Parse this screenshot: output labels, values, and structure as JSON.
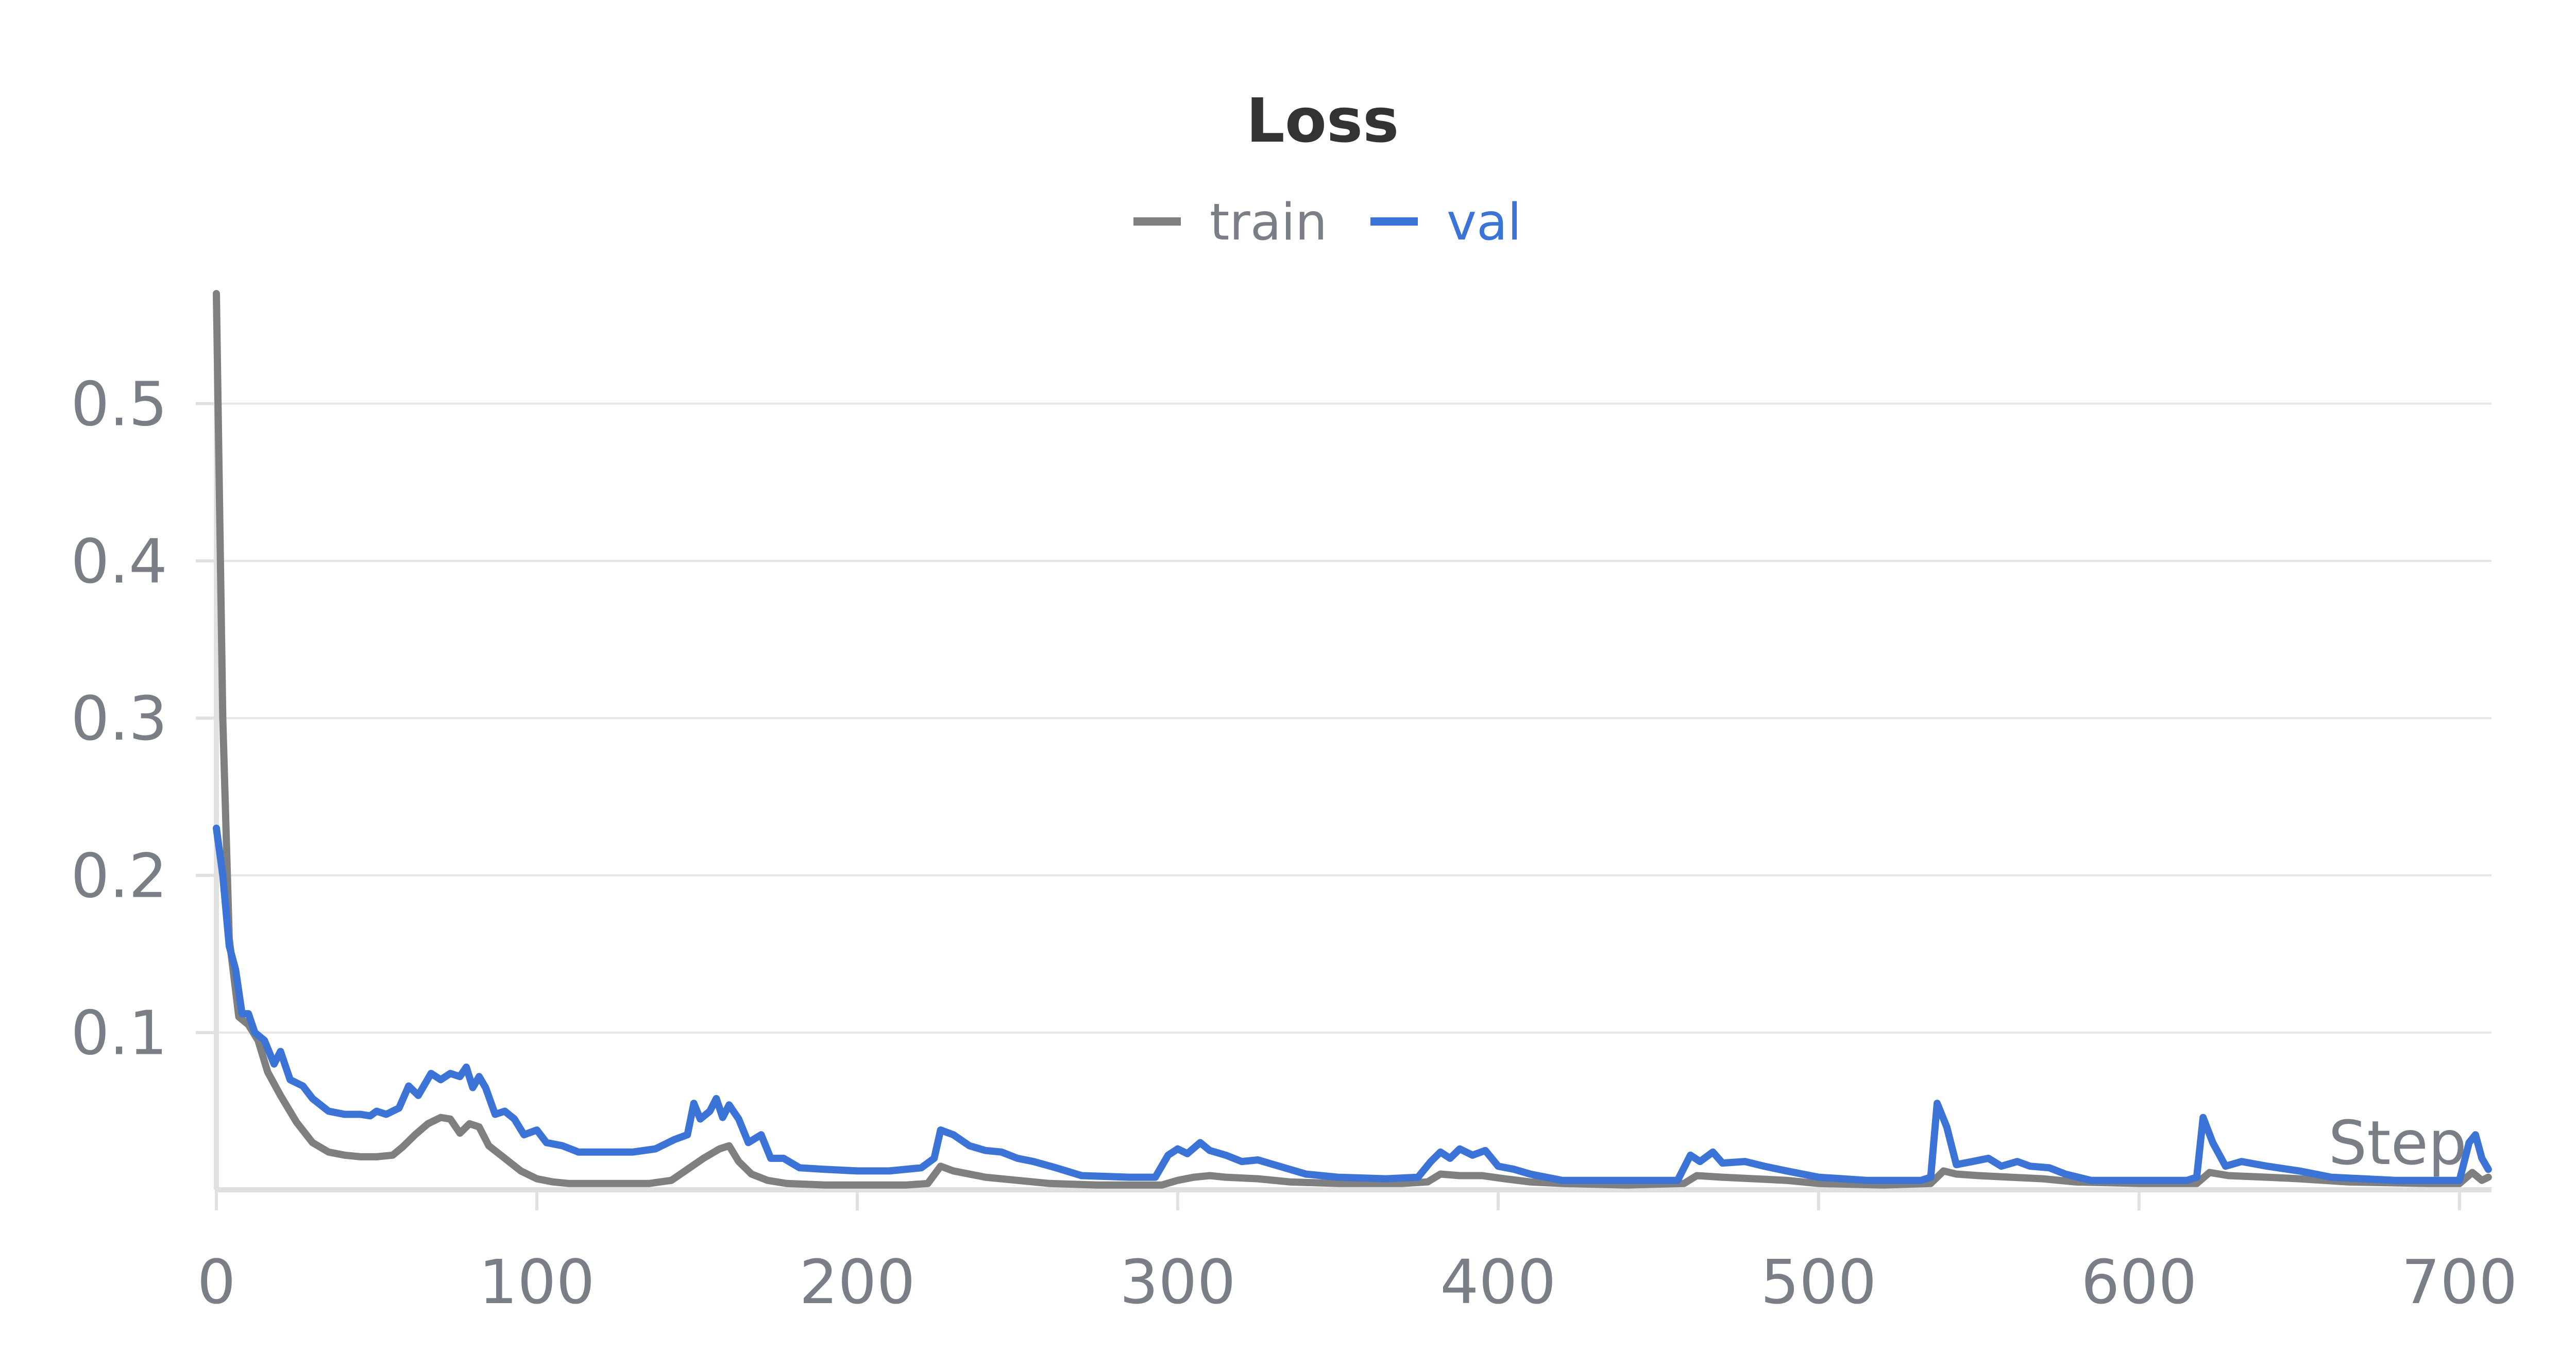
{
  "chart_data": {
    "type": "line",
    "title": "Loss",
    "xlabel": "Step",
    "ylabel": "",
    "xlim": [
      0,
      710
    ],
    "ylim": [
      0,
      0.57
    ],
    "xticks": [
      "0",
      "100",
      "200",
      "300",
      "400",
      "500",
      "600",
      "700"
    ],
    "yticks": [
      "0.1",
      "0.2",
      "0.3",
      "0.4",
      "0.5"
    ],
    "grid": true,
    "legend_position": "top-center",
    "colors": {
      "train": "#7f7f7f",
      "val": "#3b73d6",
      "grid": "#e6e6e6",
      "axis": "#e0e0e0",
      "text": "#7a7e86"
    },
    "series": [
      {
        "name": "train",
        "points": [
          [
            0,
            0.57
          ],
          [
            2,
            0.3
          ],
          [
            4,
            0.16
          ],
          [
            7,
            0.11
          ],
          [
            10,
            0.105
          ],
          [
            13,
            0.095
          ],
          [
            16,
            0.075
          ],
          [
            20,
            0.06
          ],
          [
            25,
            0.043
          ],
          [
            30,
            0.03
          ],
          [
            35,
            0.024
          ],
          [
            40,
            0.022
          ],
          [
            45,
            0.021
          ],
          [
            50,
            0.021
          ],
          [
            55,
            0.022
          ],
          [
            58,
            0.027
          ],
          [
            62,
            0.035
          ],
          [
            66,
            0.042
          ],
          [
            70,
            0.046
          ],
          [
            73,
            0.045
          ],
          [
            76,
            0.036
          ],
          [
            79,
            0.042
          ],
          [
            82,
            0.04
          ],
          [
            85,
            0.028
          ],
          [
            90,
            0.02
          ],
          [
            95,
            0.012
          ],
          [
            100,
            0.007
          ],
          [
            105,
            0.005
          ],
          [
            110,
            0.004
          ],
          [
            120,
            0.004
          ],
          [
            135,
            0.004
          ],
          [
            142,
            0.006
          ],
          [
            147,
            0.013
          ],
          [
            152,
            0.02
          ],
          [
            157,
            0.026
          ],
          [
            160,
            0.028
          ],
          [
            163,
            0.018
          ],
          [
            167,
            0.01
          ],
          [
            172,
            0.006
          ],
          [
            178,
            0.004
          ],
          [
            190,
            0.003
          ],
          [
            200,
            0.003
          ],
          [
            215,
            0.003
          ],
          [
            222,
            0.004
          ],
          [
            226,
            0.015
          ],
          [
            230,
            0.012
          ],
          [
            240,
            0.008
          ],
          [
            250,
            0.006
          ],
          [
            260,
            0.004
          ],
          [
            275,
            0.003
          ],
          [
            295,
            0.003
          ],
          [
            300,
            0.006
          ],
          [
            305,
            0.008
          ],
          [
            310,
            0.009
          ],
          [
            315,
            0.008
          ],
          [
            325,
            0.007
          ],
          [
            335,
            0.005
          ],
          [
            350,
            0.004
          ],
          [
            370,
            0.004
          ],
          [
            378,
            0.005
          ],
          [
            382,
            0.01
          ],
          [
            388,
            0.009
          ],
          [
            395,
            0.009
          ],
          [
            402,
            0.007
          ],
          [
            410,
            0.005
          ],
          [
            420,
            0.004
          ],
          [
            440,
            0.003
          ],
          [
            458,
            0.004
          ],
          [
            462,
            0.009
          ],
          [
            470,
            0.008
          ],
          [
            480,
            0.007
          ],
          [
            490,
            0.006
          ],
          [
            500,
            0.004
          ],
          [
            520,
            0.003
          ],
          [
            535,
            0.004
          ],
          [
            539,
            0.012
          ],
          [
            543,
            0.01
          ],
          [
            550,
            0.009
          ],
          [
            560,
            0.008
          ],
          [
            570,
            0.007
          ],
          [
            580,
            0.005
          ],
          [
            600,
            0.004
          ],
          [
            618,
            0.004
          ],
          [
            622,
            0.011
          ],
          [
            628,
            0.009
          ],
          [
            640,
            0.008
          ],
          [
            650,
            0.007
          ],
          [
            665,
            0.005
          ],
          [
            690,
            0.004
          ],
          [
            700,
            0.004
          ],
          [
            704,
            0.011
          ],
          [
            707,
            0.006
          ],
          [
            709,
            0.008
          ]
        ]
      },
      {
        "name": "val",
        "points": [
          [
            0,
            0.23
          ],
          [
            2,
            0.2
          ],
          [
            4,
            0.155
          ],
          [
            6,
            0.14
          ],
          [
            8,
            0.112
          ],
          [
            10,
            0.112
          ],
          [
            12,
            0.1
          ],
          [
            15,
            0.095
          ],
          [
            18,
            0.08
          ],
          [
            20,
            0.088
          ],
          [
            23,
            0.07
          ],
          [
            27,
            0.066
          ],
          [
            30,
            0.058
          ],
          [
            35,
            0.05
          ],
          [
            40,
            0.048
          ],
          [
            45,
            0.048
          ],
          [
            48,
            0.047
          ],
          [
            50,
            0.05
          ],
          [
            53,
            0.048
          ],
          [
            57,
            0.052
          ],
          [
            60,
            0.066
          ],
          [
            63,
            0.06
          ],
          [
            67,
            0.074
          ],
          [
            70,
            0.07
          ],
          [
            73,
            0.074
          ],
          [
            76,
            0.072
          ],
          [
            78,
            0.078
          ],
          [
            80,
            0.065
          ],
          [
            82,
            0.072
          ],
          [
            84,
            0.065
          ],
          [
            87,
            0.048
          ],
          [
            90,
            0.05
          ],
          [
            93,
            0.045
          ],
          [
            96,
            0.035
          ],
          [
            100,
            0.038
          ],
          [
            103,
            0.03
          ],
          [
            108,
            0.028
          ],
          [
            113,
            0.024
          ],
          [
            120,
            0.024
          ],
          [
            130,
            0.024
          ],
          [
            137,
            0.026
          ],
          [
            143,
            0.032
          ],
          [
            147,
            0.035
          ],
          [
            149,
            0.055
          ],
          [
            151,
            0.045
          ],
          [
            154,
            0.05
          ],
          [
            156,
            0.058
          ],
          [
            158,
            0.046
          ],
          [
            160,
            0.054
          ],
          [
            163,
            0.045
          ],
          [
            166,
            0.03
          ],
          [
            170,
            0.035
          ],
          [
            173,
            0.02
          ],
          [
            177,
            0.02
          ],
          [
            182,
            0.014
          ],
          [
            190,
            0.013
          ],
          [
            200,
            0.012
          ],
          [
            210,
            0.012
          ],
          [
            220,
            0.014
          ],
          [
            224,
            0.02
          ],
          [
            226,
            0.038
          ],
          [
            230,
            0.035
          ],
          [
            235,
            0.028
          ],
          [
            240,
            0.025
          ],
          [
            245,
            0.024
          ],
          [
            250,
            0.02
          ],
          [
            255,
            0.018
          ],
          [
            262,
            0.014
          ],
          [
            270,
            0.009
          ],
          [
            285,
            0.008
          ],
          [
            293,
            0.008
          ],
          [
            297,
            0.022
          ],
          [
            300,
            0.026
          ],
          [
            303,
            0.023
          ],
          [
            307,
            0.03
          ],
          [
            310,
            0.025
          ],
          [
            315,
            0.022
          ],
          [
            320,
            0.018
          ],
          [
            325,
            0.019
          ],
          [
            330,
            0.016
          ],
          [
            335,
            0.013
          ],
          [
            340,
            0.01
          ],
          [
            350,
            0.008
          ],
          [
            365,
            0.007
          ],
          [
            375,
            0.008
          ],
          [
            379,
            0.018
          ],
          [
            382,
            0.024
          ],
          [
            385,
            0.02
          ],
          [
            388,
            0.026
          ],
          [
            392,
            0.022
          ],
          [
            396,
            0.025
          ],
          [
            400,
            0.015
          ],
          [
            405,
            0.013
          ],
          [
            410,
            0.01
          ],
          [
            420,
            0.006
          ],
          [
            440,
            0.006
          ],
          [
            456,
            0.006
          ],
          [
            460,
            0.022
          ],
          [
            463,
            0.018
          ],
          [
            467,
            0.024
          ],
          [
            470,
            0.017
          ],
          [
            477,
            0.018
          ],
          [
            483,
            0.015
          ],
          [
            490,
            0.012
          ],
          [
            500,
            0.008
          ],
          [
            515,
            0.006
          ],
          [
            532,
            0.006
          ],
          [
            535,
            0.008
          ],
          [
            537,
            0.055
          ],
          [
            540,
            0.04
          ],
          [
            543,
            0.016
          ],
          [
            548,
            0.018
          ],
          [
            553,
            0.02
          ],
          [
            557,
            0.015
          ],
          [
            562,
            0.018
          ],
          [
            566,
            0.015
          ],
          [
            572,
            0.014
          ],
          [
            577,
            0.01
          ],
          [
            585,
            0.006
          ],
          [
            600,
            0.006
          ],
          [
            615,
            0.006
          ],
          [
            618,
            0.008
          ],
          [
            620,
            0.046
          ],
          [
            623,
            0.03
          ],
          [
            627,
            0.015
          ],
          [
            632,
            0.018
          ],
          [
            640,
            0.015
          ],
          [
            650,
            0.012
          ],
          [
            660,
            0.008
          ],
          [
            680,
            0.006
          ],
          [
            700,
            0.006
          ],
          [
            703,
            0.03
          ],
          [
            705,
            0.035
          ],
          [
            707,
            0.02
          ],
          [
            709,
            0.013
          ]
        ]
      }
    ]
  }
}
